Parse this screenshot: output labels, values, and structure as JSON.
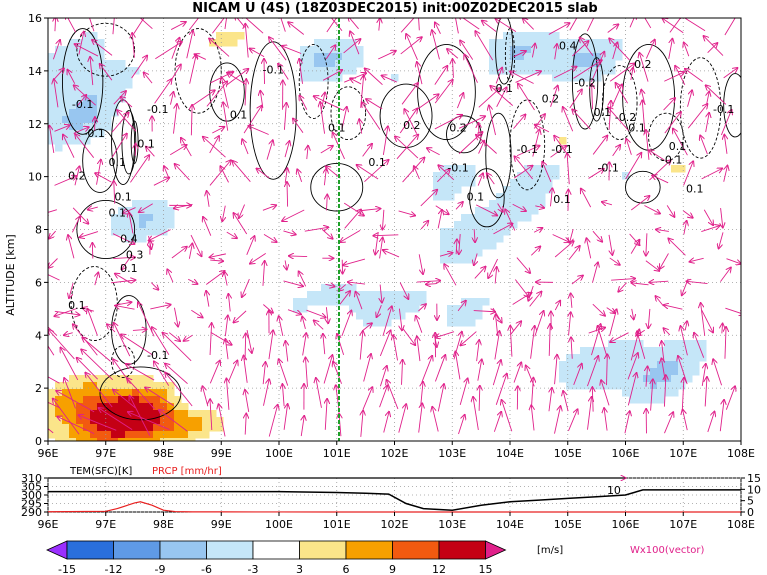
{
  "title": "NICAM U (4S) (18Z03DEC2015) init:00Z02DEC2015 slab",
  "colors": {
    "cold_dark": "#2a6fdc",
    "cold_mid": "#5f9ae6",
    "cold_light": "#98c6f0",
    "cold_pale": "#c5e6f8",
    "warm_pale": "#fbe58a",
    "warm_light": "#f7a000",
    "warm_mid": "#f25a10",
    "warm_dark": "#c40014",
    "vector": "#e0208a",
    "marker_line": "#1fa02a",
    "temp_line": "#000000",
    "prcp_line": "#e82020"
  },
  "chart_data": [
    {
      "type": "heatmap",
      "title": "NICAM U (4S) (18Z03DEC2015) init:00Z02DEC2015 slab",
      "ylabel": "ALTITUDE [km]",
      "xticks": [
        "96E",
        "97E",
        "98E",
        "99E",
        "100E",
        "101E",
        "102E",
        "103E",
        "104E",
        "105E",
        "106E",
        "107E",
        "108E"
      ],
      "xlim": [
        96,
        108
      ],
      "ylim": [
        0,
        16
      ],
      "yticks": [
        "0",
        "2",
        "4",
        "6",
        "8",
        "10",
        "12",
        "14",
        "16"
      ],
      "grid": true,
      "marker_lon": 101.0,
      "colorbar": {
        "levels": [
          "-15",
          "-12",
          "-9",
          "-6",
          "-3",
          "3",
          "6",
          "9",
          "12",
          "15"
        ],
        "unit": "[m/s]"
      },
      "vector_label": "Wx100(vector)",
      "contour_labels": [
        "-0.1",
        "-0.1",
        "-0.1",
        "0.1",
        "0.1",
        "0.2",
        "0.1",
        "0.1",
        "0.4",
        "0.3",
        "0.1",
        "-0.1",
        "0.1",
        "-0.1",
        "0.1",
        "0.1",
        "0.2",
        "0.1",
        "-0.1",
        "0.1",
        "0.1",
        "0.2",
        "-0.1",
        "-0.1",
        "0.1",
        "0.4",
        "0.2",
        "-0.2",
        "-0.1",
        "-0.2",
        "-0.1",
        "0.1",
        "0.2",
        "-0.1",
        "0.1",
        "0.1",
        "0.1"
      ]
    },
    {
      "type": "line",
      "series": [
        {
          "name": "TEM(SFC)[K]",
          "x": [
            96,
            97,
            97.5,
            98,
            98.5,
            99,
            100,
            101,
            101.5,
            101.9,
            102.2,
            102.5,
            103,
            103.5,
            104,
            104.5,
            105,
            105.5,
            106,
            106.3,
            107,
            108
          ],
          "values": [
            302,
            302,
            302,
            302,
            302,
            302,
            302,
            301.5,
            301,
            300.5,
            295,
            292,
            291,
            294,
            296,
            297,
            298,
            299,
            300,
            303,
            303,
            303
          ]
        },
        {
          "name": "PRCP [mm/hr]",
          "x": [
            96,
            97,
            97.2,
            97.5,
            97.6,
            97.8,
            98,
            98.2,
            98.5,
            99,
            100,
            101,
            102,
            103,
            104,
            105,
            106,
            107,
            108
          ],
          "values": [
            0.1,
            0.3,
            1.5,
            4.0,
            4.5,
            3.0,
            0.8,
            0.2,
            0.05,
            0.05,
            0.02,
            0,
            0,
            0,
            0,
            0,
            0,
            0,
            0
          ]
        }
      ],
      "left_axis_ticks": [
        "290",
        "295",
        "300",
        "305",
        "310"
      ],
      "right_axis_ticks": [
        "0",
        "5",
        "10",
        "15"
      ],
      "inline_label": "10"
    }
  ]
}
